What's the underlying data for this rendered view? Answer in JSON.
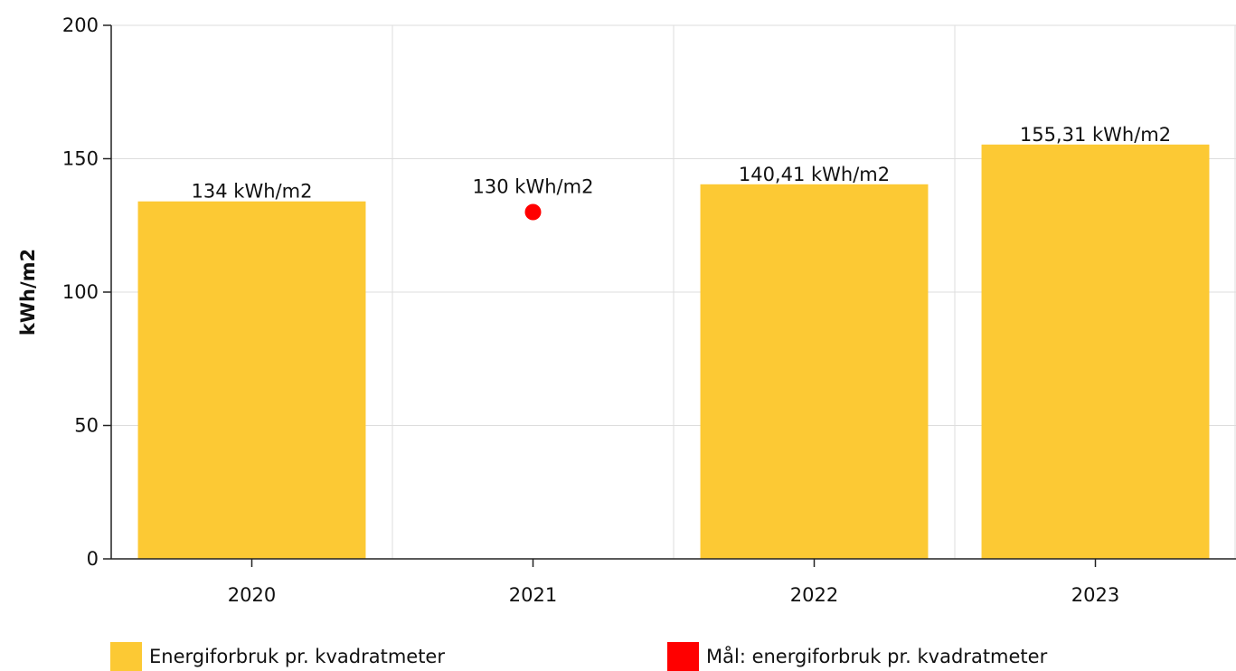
{
  "chart_data": {
    "type": "bar",
    "ylabel": "kWh/m2",
    "xlabel": "",
    "title": "",
    "ylim": [
      0,
      200
    ],
    "yticks": [
      0,
      50,
      100,
      150,
      200
    ],
    "categories": [
      "2020",
      "2021",
      "2022",
      "2023"
    ],
    "grid": true,
    "legend_position": "bottom",
    "series": [
      {
        "name": "Energiforbruk pr. kvadratmeter",
        "kind": "bar",
        "color": "#fcc934",
        "values": [
          134,
          null,
          140.41,
          155.31
        ],
        "labels": [
          "134 kWh/m2",
          "",
          "140,41 kWh/m2",
          "155,31 kWh/m2"
        ]
      },
      {
        "name": "Mål: energiforbruk pr. kvadratmeter",
        "kind": "point",
        "color": "#ff0000",
        "values": [
          null,
          130,
          null,
          null
        ],
        "labels": [
          "",
          "130 kWh/m2",
          "",
          ""
        ]
      }
    ]
  }
}
